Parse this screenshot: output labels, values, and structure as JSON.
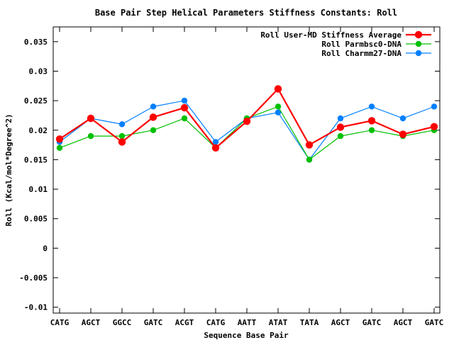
{
  "chart_data": {
    "type": "line",
    "title": "Base Pair Step Helical Parameters Stiffness Constants: Roll",
    "xlabel": "Sequence Base Pair",
    "ylabel": "Roll (Kcal/mol*Degree^2)",
    "categories": [
      "CATG",
      "AGCT",
      "GGCC",
      "GATC",
      "ACGT",
      "CATG",
      "AATT",
      "ATAT",
      "TATA",
      "AGCT",
      "GATC",
      "AGCT",
      "GATC"
    ],
    "ylim": [
      -0.011,
      0.0375
    ],
    "yticks": [
      -0.01,
      -0.005,
      0,
      0.005,
      0.01,
      0.015,
      0.02,
      0.025,
      0.03,
      0.035
    ],
    "ytick_labels": [
      "-0.01",
      "-0.005",
      "0",
      "0.005",
      "0.01",
      "0.015",
      "0.02",
      "0.025",
      "0.03",
      "0.035"
    ],
    "grid": false,
    "legend_position": "top-right",
    "series": [
      {
        "name": "Roll User-MD Stiffness Average",
        "color": "#ff0000",
        "values": [
          0.0185,
          0.022,
          0.018,
          0.0222,
          0.0238,
          0.017,
          0.0215,
          0.027,
          0.0175,
          0.0205,
          0.0216,
          0.0193,
          0.0206
        ]
      },
      {
        "name": "Roll Parmbsc0-DNA",
        "color": "#00c000",
        "values": [
          0.017,
          0.019,
          0.019,
          0.02,
          0.022,
          0.017,
          0.022,
          0.024,
          0.015,
          0.019,
          0.02,
          0.019,
          0.02
        ]
      },
      {
        "name": "Roll Charmm27-DNA",
        "color": "#0080ff",
        "values": [
          0.018,
          0.022,
          0.021,
          0.024,
          0.025,
          0.018,
          0.022,
          0.023,
          0.015,
          0.022,
          0.024,
          0.022,
          0.024
        ]
      }
    ]
  }
}
